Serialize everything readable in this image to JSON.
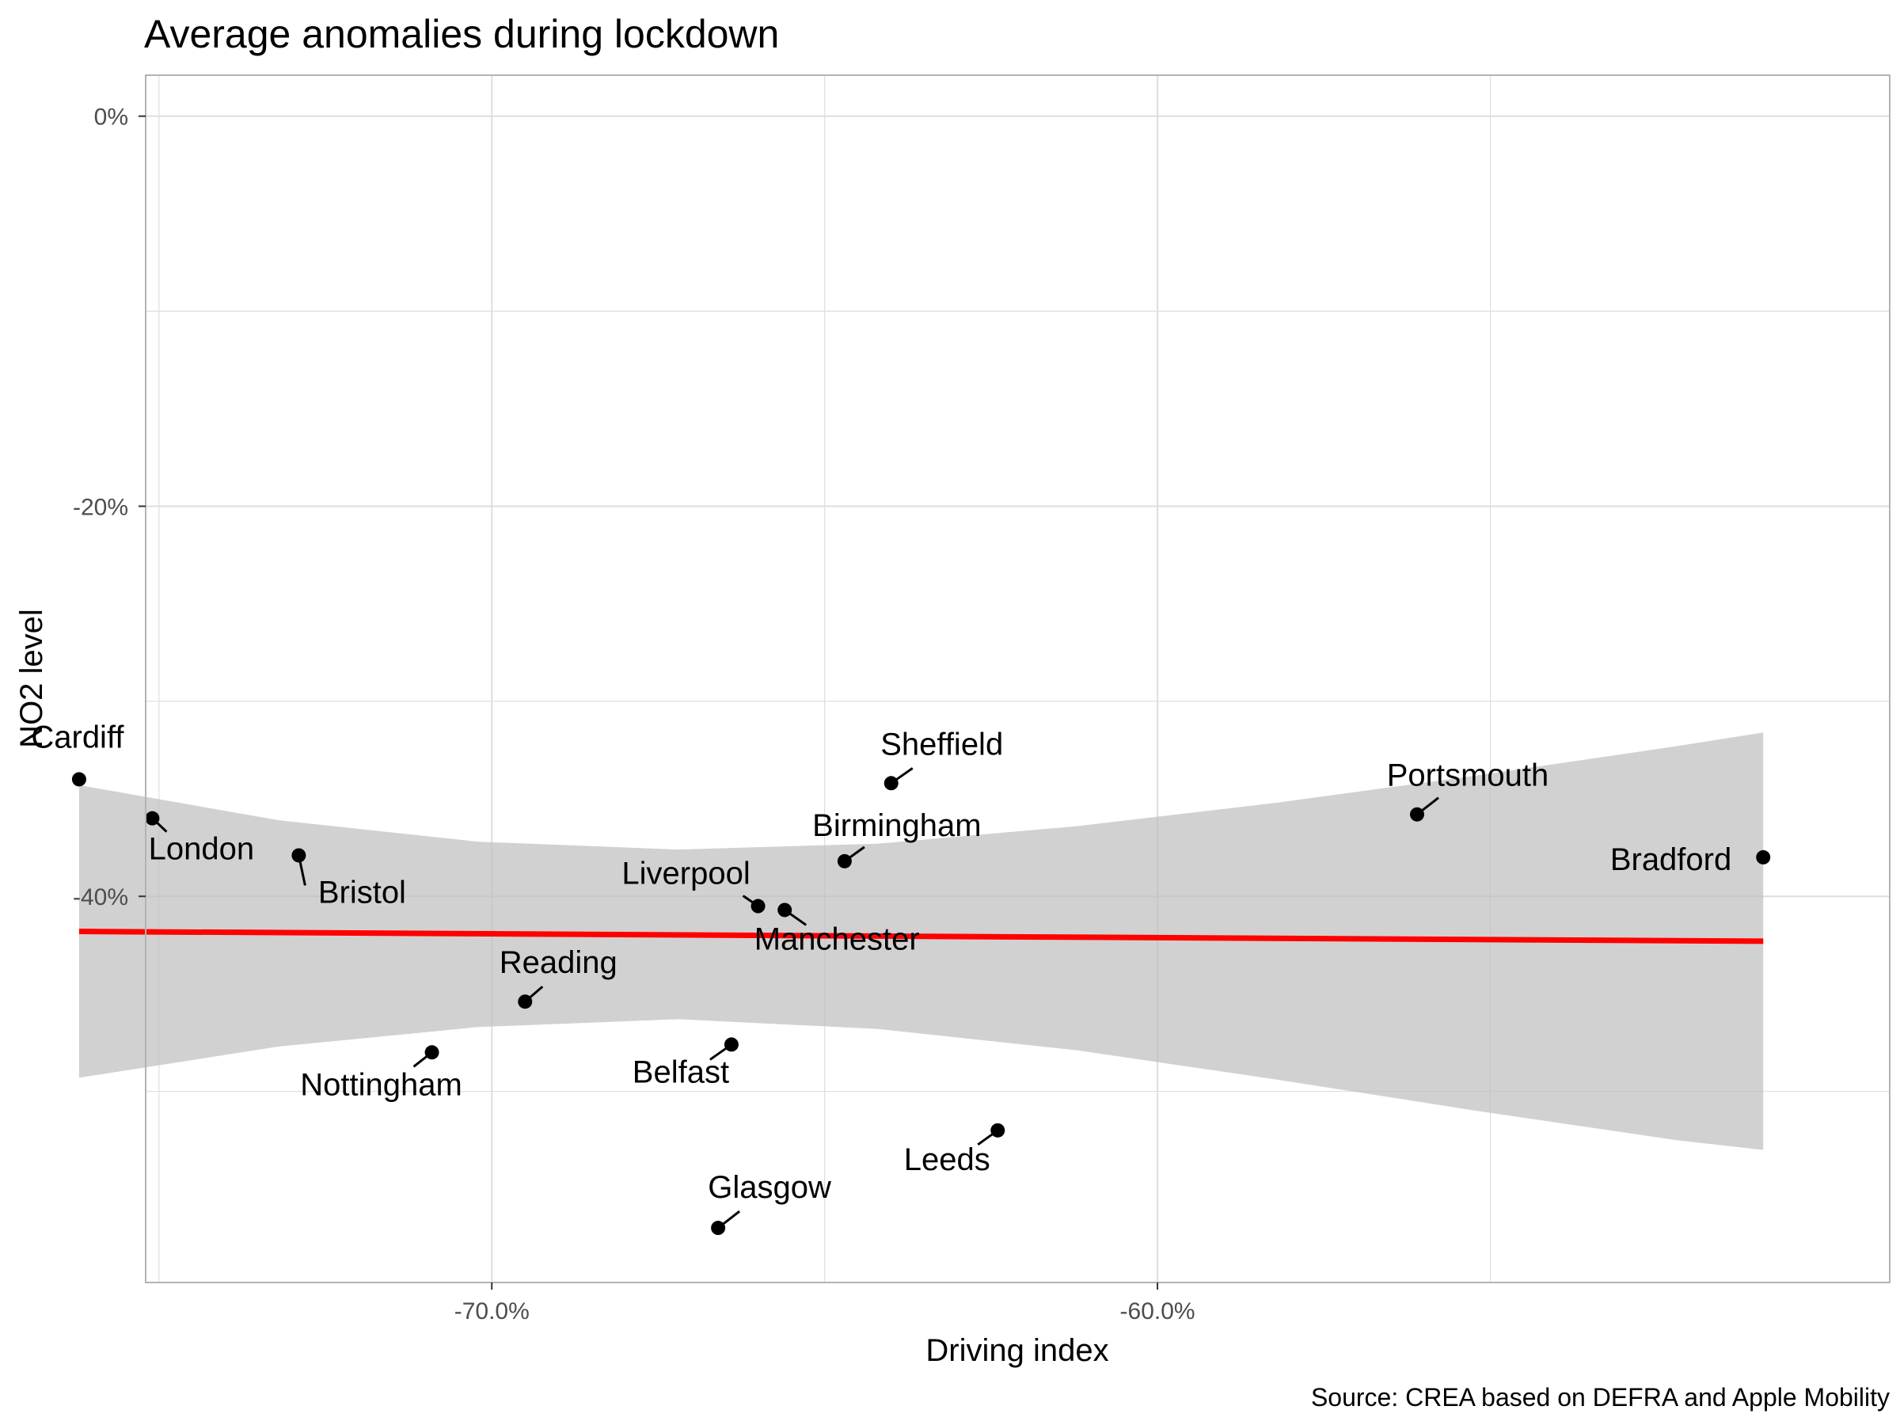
{
  "chart_data": {
    "type": "scatter",
    "title": "Average anomalies during lockdown",
    "xlabel": "Driving index",
    "ylabel": "NO2 level",
    "caption": "Source: CREA based on DEFRA and Apple Mobility",
    "xlim": [
      -75.2,
      -49.0
    ],
    "ylim": [
      -59.8,
      2.1
    ],
    "x_ticks": [
      -70,
      -60
    ],
    "x_tick_labels": [
      "-70.0%",
      "-60.0%"
    ],
    "x_minor_ticks": [
      -75,
      -65,
      -55
    ],
    "y_ticks": [
      0,
      -20,
      -40
    ],
    "y_tick_labels": [
      "0%",
      "-20%",
      "-40%"
    ],
    "y_minor_ticks": [
      -10,
      -30,
      -50
    ],
    "grid": true,
    "colors": {
      "points": "#000000",
      "trend_line": "#ff0000",
      "confidence_band": "#bfbfbf",
      "grid": "#dedede",
      "panel_border": "#b3b3b3"
    },
    "points": [
      {
        "label": "Cardiff",
        "x": -76.2,
        "y": -34.0
      },
      {
        "label": "London",
        "x": -75.1,
        "y": -36.0
      },
      {
        "label": "Bristol",
        "x": -72.9,
        "y": -37.9
      },
      {
        "label": "Nottingham",
        "x": -70.9,
        "y": -48.0
      },
      {
        "label": "Reading",
        "x": -69.5,
        "y": -45.4
      },
      {
        "label": "Glasgow",
        "x": -66.6,
        "y": -57.0
      },
      {
        "label": "Belfast",
        "x": -66.4,
        "y": -47.6
      },
      {
        "label": "Liverpool",
        "x": -66.0,
        "y": -40.5
      },
      {
        "label": "Manchester",
        "x": -65.6,
        "y": -40.7
      },
      {
        "label": "Birmingham",
        "x": -64.7,
        "y": -38.2
      },
      {
        "label": "Sheffield",
        "x": -64.0,
        "y": -34.2
      },
      {
        "label": "Leeds",
        "x": -62.4,
        "y": -52.0
      },
      {
        "label": "Portsmouth",
        "x": -56.1,
        "y": -35.8
      },
      {
        "label": "Bradford",
        "x": -50.9,
        "y": -38.0
      }
    ],
    "trend": {
      "x": [
        -76.2,
        -50.9
      ],
      "y": [
        -41.8,
        -42.3
      ]
    },
    "confidence_band": {
      "x": [
        -76.2,
        -73.2,
        -70.2,
        -67.2,
        -64.2,
        -61.2,
        -58.2,
        -55.2,
        -52.2,
        -50.9
      ],
      "upper": [
        -34.3,
        -36.1,
        -37.2,
        -37.6,
        -37.3,
        -36.4,
        -35.2,
        -33.8,
        -32.3,
        -31.6
      ],
      "lower": [
        -49.3,
        -47.7,
        -46.7,
        -46.3,
        -46.8,
        -47.9,
        -49.4,
        -51.0,
        -52.5,
        -53.0
      ]
    }
  }
}
